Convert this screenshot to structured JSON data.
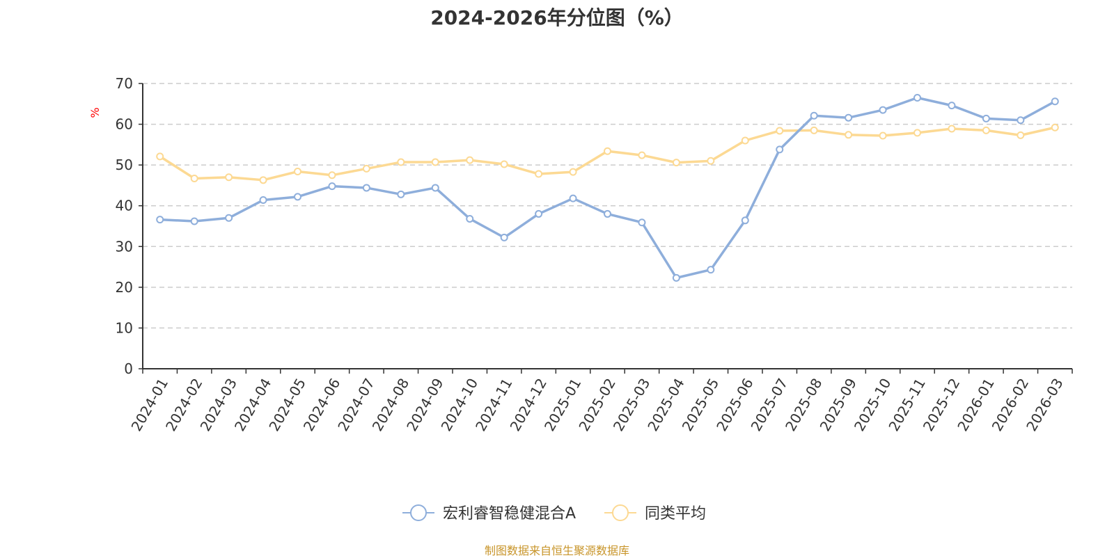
{
  "chart_data": {
    "type": "line",
    "title": "2024-2026年分位图（%）",
    "ylabel": "%",
    "ylim": [
      0,
      70
    ],
    "yticks": [
      0,
      10,
      20,
      30,
      40,
      50,
      60,
      70
    ],
    "grid": true,
    "legend_position": "bottom",
    "categories": [
      "2024-01",
      "2024-02",
      "2024-03",
      "2024-04",
      "2024-05",
      "2024-06",
      "2024-07",
      "2024-08",
      "2024-09",
      "2024-10",
      "2024-11",
      "2024-12",
      "2025-01",
      "2025-02",
      "2025-03",
      "2025-04",
      "2025-05",
      "2025-06",
      "2025-07",
      "2025-08",
      "2025-09",
      "2025-10",
      "2025-11",
      "2025-12",
      "2026-01",
      "2026-02",
      "2026-03"
    ],
    "series": [
      {
        "name": "宏利睿智稳健混合A",
        "color": "#8eaedb",
        "values": [
          36.6,
          36.2,
          37.0,
          41.4,
          42.2,
          44.8,
          44.4,
          42.8,
          44.4,
          36.8,
          32.2,
          38.0,
          41.8,
          38.0,
          35.9,
          22.3,
          24.3,
          36.4,
          53.8,
          62.1,
          61.6,
          63.5,
          66.5,
          64.6,
          61.4,
          61.0,
          65.6
        ]
      },
      {
        "name": "同类平均",
        "color": "#fcd993",
        "values": [
          52.1,
          46.7,
          47.0,
          46.3,
          48.4,
          47.5,
          49.1,
          50.7,
          50.7,
          51.2,
          50.2,
          47.8,
          48.3,
          53.4,
          52.4,
          50.6,
          51.0,
          56.0,
          58.4,
          58.5,
          57.4,
          57.2,
          57.9,
          58.9,
          58.5,
          57.3,
          59.2
        ]
      }
    ]
  },
  "source_note": "制图数据来自恒生聚源数据库"
}
